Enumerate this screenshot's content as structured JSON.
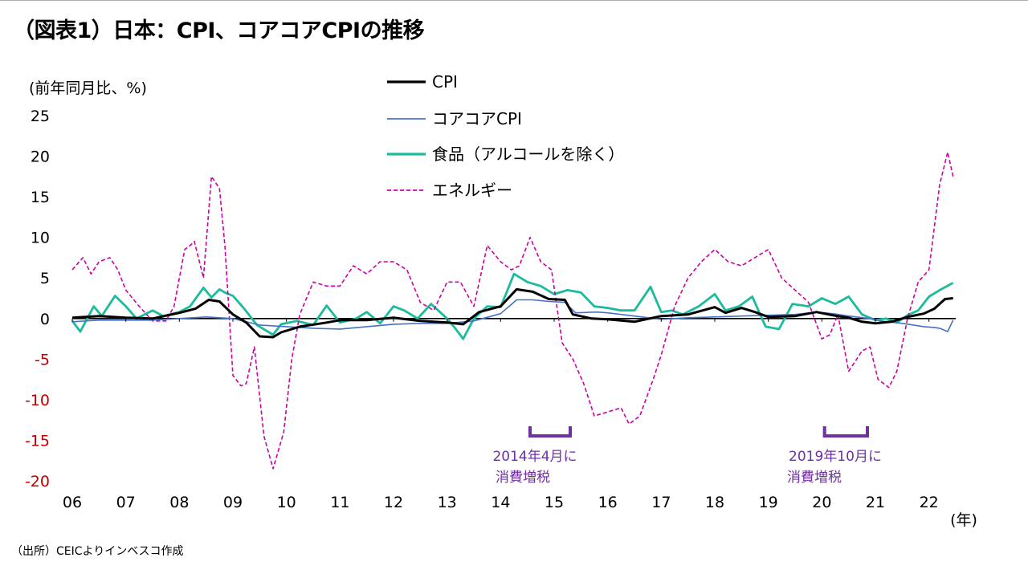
{
  "title": "（図表1）日本：CPI、コアコアCPIの推移",
  "source": "（出所）CEICよりインベスコ作成",
  "chart_data": {
    "type": "line",
    "ylabel": "(前年同月比、%)",
    "xlabel": "(年)",
    "ylim": [
      -20,
      25
    ],
    "y_ticks": [
      25,
      20,
      15,
      10,
      5,
      0,
      -5,
      -10,
      -15,
      -20
    ],
    "y_tick_labels": [
      "25",
      "20",
      "15",
      "10",
      "5",
      "0",
      "-5",
      "-10",
      "-15",
      "-20"
    ],
    "negative_tick_color": "#c00000",
    "x_range": [
      2006.0,
      2022.5
    ],
    "x_ticks": [
      2006,
      2007,
      2008,
      2009,
      2010,
      2011,
      2012,
      2013,
      2014,
      2015,
      2016,
      2017,
      2018,
      2019,
      2020,
      2021,
      2022
    ],
    "x_tick_labels": [
      "06",
      "07",
      "08",
      "09",
      "10",
      "11",
      "12",
      "13",
      "14",
      "15",
      "16",
      "17",
      "18",
      "19",
      "20",
      "21",
      "22"
    ],
    "series": [
      {
        "name": "CPI",
        "color": "#000000",
        "style": "solid",
        "x": [
          2006.0,
          2006.5,
          2007.0,
          2007.5,
          2008.0,
          2008.3,
          2008.55,
          2008.75,
          2009.0,
          2009.25,
          2009.5,
          2009.75,
          2009.9,
          2010.25,
          2010.75,
          2011.0,
          2011.5,
          2012.0,
          2012.5,
          2013.0,
          2013.3,
          2013.6,
          2014.0,
          2014.3,
          2014.6,
          2014.9,
          2015.2,
          2015.35,
          2015.7,
          2016.0,
          2016.5,
          2017.0,
          2017.5,
          2018.0,
          2018.2,
          2018.5,
          2018.75,
          2019.0,
          2019.5,
          2019.9,
          2020.2,
          2020.5,
          2020.75,
          2021.0,
          2021.3,
          2021.6,
          2021.9,
          2022.1,
          2022.3,
          2022.45
        ],
        "values": [
          0.1,
          0.3,
          0.1,
          0.0,
          0.7,
          1.2,
          2.3,
          2.1,
          0.5,
          -0.5,
          -2.2,
          -2.3,
          -1.7,
          -1.0,
          -0.5,
          -0.2,
          -0.2,
          0.1,
          -0.3,
          -0.5,
          -0.7,
          0.8,
          1.5,
          3.6,
          3.3,
          2.4,
          2.3,
          0.5,
          0.0,
          -0.1,
          -0.4,
          0.3,
          0.5,
          1.4,
          0.7,
          1.3,
          0.8,
          0.2,
          0.3,
          0.8,
          0.4,
          0.1,
          -0.4,
          -0.6,
          -0.4,
          0.2,
          0.6,
          1.2,
          2.4,
          2.5
        ]
      },
      {
        "name": "コアコアCPI",
        "color": "#4472c4",
        "style": "solid",
        "x": [
          2006.0,
          2006.5,
          2007.0,
          2007.5,
          2008.0,
          2008.5,
          2009.0,
          2009.5,
          2010.0,
          2010.5,
          2011.0,
          2011.5,
          2012.0,
          2012.5,
          2013.0,
          2013.5,
          2014.0,
          2014.3,
          2014.6,
          2014.9,
          2015.2,
          2015.4,
          2015.8,
          2016.0,
          2016.5,
          2017.0,
          2017.5,
          2018.0,
          2018.5,
          2019.0,
          2019.5,
          2019.9,
          2020.2,
          2020.5,
          2020.9,
          2021.1,
          2021.5,
          2021.9,
          2022.1,
          2022.2,
          2022.35,
          2022.45
        ],
        "values": [
          -0.4,
          -0.2,
          -0.2,
          -0.2,
          0.0,
          0.2,
          0.0,
          -0.8,
          -1.0,
          -1.2,
          -1.3,
          -1.0,
          -0.7,
          -0.6,
          -0.6,
          -0.3,
          0.6,
          2.3,
          2.3,
          2.1,
          2.0,
          0.7,
          0.8,
          0.7,
          0.3,
          -0.1,
          0.1,
          0.2,
          0.3,
          0.4,
          0.5,
          0.8,
          0.6,
          0.3,
          0.0,
          -0.3,
          -0.6,
          -1.0,
          -1.1,
          -1.2,
          -1.6,
          -0.2
        ]
      },
      {
        "name": "食品（アルコールを除く）",
        "color": "#1abc9c",
        "style": "solid",
        "x": [
          2006.0,
          2006.15,
          2006.4,
          2006.55,
          2006.8,
          2007.0,
          2007.2,
          2007.5,
          2007.7,
          2008.0,
          2008.2,
          2008.45,
          2008.6,
          2008.75,
          2008.85,
          2009.0,
          2009.2,
          2009.45,
          2009.75,
          2009.9,
          2010.2,
          2010.5,
          2010.75,
          2011.0,
          2011.3,
          2011.5,
          2011.75,
          2012.0,
          2012.2,
          2012.45,
          2012.7,
          2013.0,
          2013.15,
          2013.3,
          2013.5,
          2013.75,
          2014.0,
          2014.25,
          2014.5,
          2014.75,
          2015.0,
          2015.25,
          2015.5,
          2015.75,
          2016.0,
          2016.25,
          2016.5,
          2016.8,
          2017.0,
          2017.2,
          2017.4,
          2017.7,
          2018.0,
          2018.2,
          2018.45,
          2018.7,
          2018.95,
          2019.2,
          2019.45,
          2019.75,
          2020.0,
          2020.25,
          2020.5,
          2020.75,
          2021.0,
          2021.2,
          2021.4,
          2021.6,
          2021.8,
          2022.0,
          2022.2,
          2022.45
        ],
        "values": [
          -0.3,
          -1.6,
          1.5,
          0.3,
          2.8,
          1.5,
          0.0,
          1.0,
          0.3,
          0.8,
          1.5,
          3.8,
          2.6,
          3.6,
          3.2,
          2.8,
          1.3,
          -0.8,
          -2.0,
          -0.7,
          -0.3,
          -0.8,
          1.6,
          -0.5,
          0.0,
          0.8,
          -0.6,
          1.5,
          1.0,
          0.0,
          1.8,
          0.0,
          -1.2,
          -2.5,
          0.0,
          1.5,
          1.4,
          5.5,
          4.5,
          4.0,
          3.0,
          3.5,
          3.2,
          1.5,
          1.3,
          1.0,
          1.0,
          3.9,
          0.8,
          1.0,
          0.5,
          1.5,
          3.0,
          1.0,
          1.5,
          2.7,
          -1.0,
          -1.3,
          1.8,
          1.5,
          2.5,
          1.8,
          2.7,
          0.5,
          -0.2,
          0.0,
          -0.5,
          0.4,
          1.0,
          2.7,
          3.5,
          4.4
        ]
      },
      {
        "name": "エネルギー",
        "color": "#cc00a3",
        "style": "dashed",
        "x": [
          2006.0,
          2006.2,
          2006.35,
          2006.5,
          2006.7,
          2006.85,
          2007.0,
          2007.25,
          2007.5,
          2007.75,
          2007.9,
          2008.1,
          2008.2,
          2008.28,
          2008.45,
          2008.6,
          2008.75,
          2008.85,
          2009.0,
          2009.15,
          2009.25,
          2009.4,
          2009.58,
          2009.75,
          2009.95,
          2010.1,
          2010.25,
          2010.5,
          2010.75,
          2011.0,
          2011.25,
          2011.5,
          2011.75,
          2012.0,
          2012.25,
          2012.5,
          2012.75,
          2013.0,
          2013.25,
          2013.5,
          2013.75,
          2014.0,
          2014.2,
          2014.35,
          2014.55,
          2014.75,
          2014.95,
          2015.15,
          2015.35,
          2015.55,
          2015.75,
          2016.0,
          2016.25,
          2016.4,
          2016.6,
          2016.85,
          2017.0,
          2017.25,
          2017.5,
          2017.75,
          2018.0,
          2018.25,
          2018.5,
          2018.75,
          2019.0,
          2019.25,
          2019.5,
          2019.75,
          2020.0,
          2020.15,
          2020.3,
          2020.5,
          2020.75,
          2020.9,
          2021.05,
          2021.25,
          2021.4,
          2021.6,
          2021.8,
          2022.0,
          2022.2,
          2022.35,
          2022.45
        ],
        "values": [
          6.0,
          7.5,
          5.5,
          7.0,
          7.5,
          6.0,
          3.5,
          1.5,
          -0.3,
          -0.3,
          1.5,
          8.5,
          9.0,
          9.5,
          5.0,
          17.5,
          16.0,
          9.0,
          -7.0,
          -8.3,
          -8.0,
          -3.5,
          -14.5,
          -18.5,
          -14.0,
          -5.0,
          0.5,
          4.5,
          4.0,
          4.0,
          6.5,
          5.5,
          7.0,
          7.0,
          6.0,
          2.0,
          1.0,
          4.5,
          4.5,
          1.5,
          9.0,
          7.0,
          6.0,
          6.5,
          10.0,
          7.0,
          6.0,
          -3.0,
          -5.0,
          -8.0,
          -12.0,
          -11.5,
          -11.0,
          -13.0,
          -12.0,
          -7.5,
          -4.5,
          1.5,
          5.0,
          7.0,
          8.5,
          7.0,
          6.5,
          7.5,
          8.5,
          5.0,
          3.5,
          2.0,
          -2.5,
          -2.0,
          0.5,
          -6.5,
          -4.0,
          -3.5,
          -7.5,
          -8.5,
          -6.5,
          0.0,
          4.5,
          6.0,
          16.5,
          20.5,
          17.5
        ]
      }
    ],
    "annotations": [
      {
        "line1": "2014年4月に",
        "line2": "消費増税",
        "bracket_from": 2014.55,
        "bracket_to": 2015.3
      },
      {
        "line1": "2019年10月に",
        "line2": "消費増税",
        "bracket_from": 2020.05,
        "bracket_to": 2020.85
      }
    ],
    "annotation_color": "#7030a0"
  }
}
